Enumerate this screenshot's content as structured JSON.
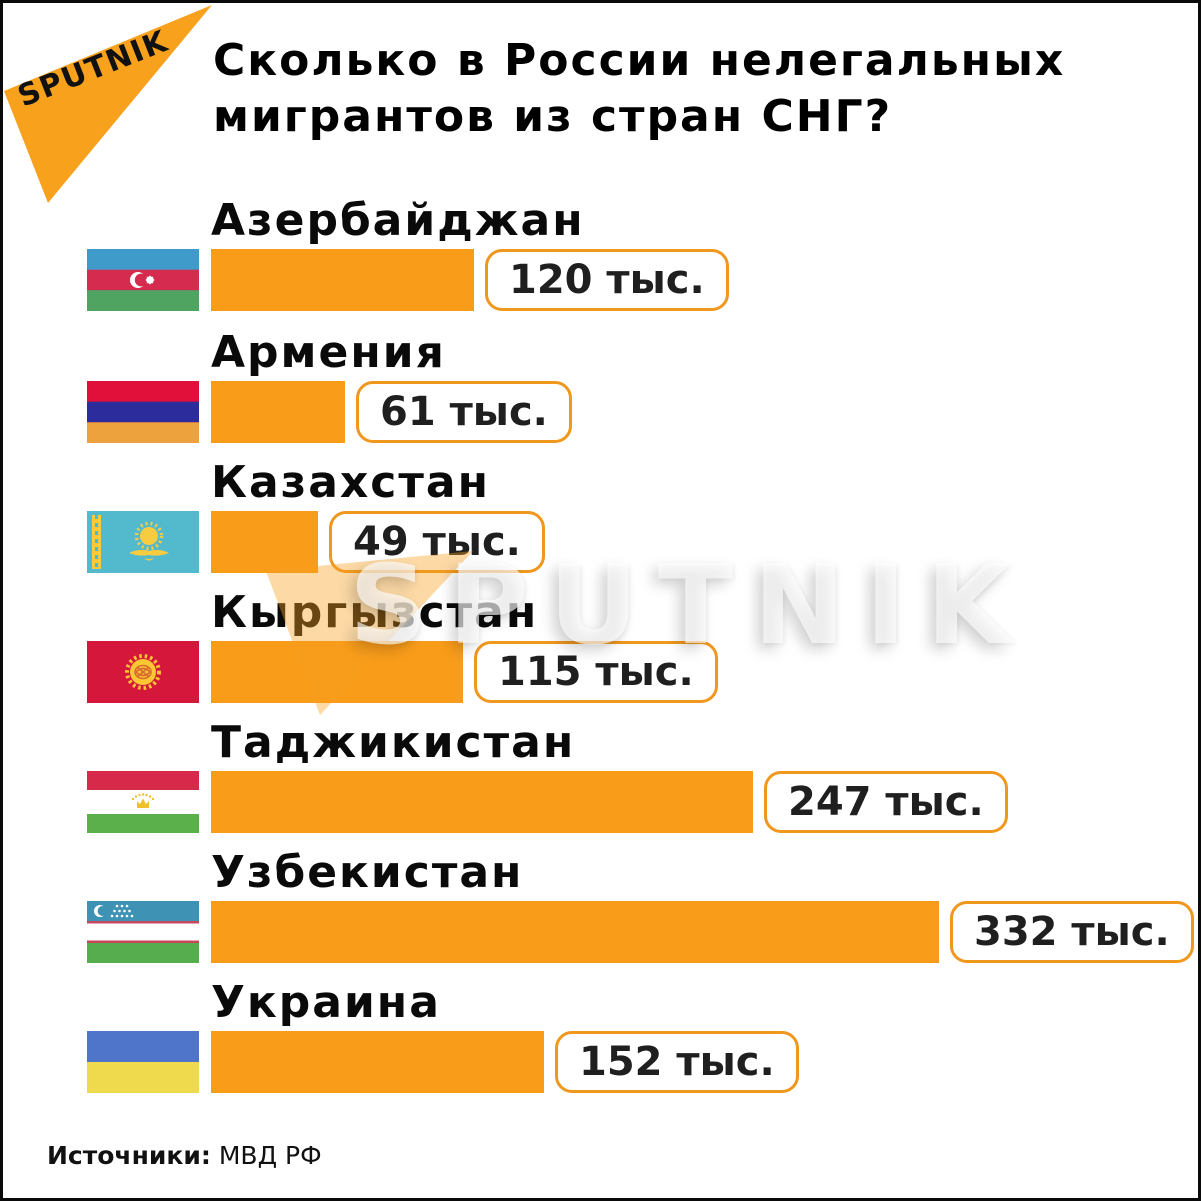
{
  "brand": {
    "logo_text": "SPUTNIK",
    "watermark_text": "SPUTNIK",
    "orange": "#F89C1A"
  },
  "title": {
    "line1": "Сколько в России нелегальных",
    "line2": "мигрантов из стран СНГ?"
  },
  "source": {
    "label": "Источники:",
    "value": "МВД РФ"
  },
  "chart_data": {
    "type": "bar",
    "orientation": "horizontal",
    "title": "Сколько в России нелегальных мигрантов из стран СНГ?",
    "unit": "тыс.",
    "categories": [
      "Азербайджан",
      "Армения",
      "Казахстан",
      "Кыргызстан",
      "Таджикистан",
      "Узбекистан",
      "Украина"
    ],
    "values": [
      120,
      61,
      49,
      115,
      247,
      332,
      152
    ],
    "value_labels": [
      "120 тыс.",
      "61 тыс.",
      "49 тыс.",
      "115 тыс.",
      "247 тыс.",
      "332 тыс.",
      "152 тыс."
    ],
    "xlim": [
      0,
      332
    ],
    "bar_color": "#F89C1A",
    "grid": false,
    "legend": "none",
    "source": "Источники: МВД РФ"
  },
  "rows": [
    {
      "name": "Азербайджан",
      "value_label": "120 тыс."
    },
    {
      "name": "Армения",
      "value_label": "61 тыс."
    },
    {
      "name": "Казахстан",
      "value_label": "49 тыс."
    },
    {
      "name": "Кыргызстан",
      "value_label": "115 тыс."
    },
    {
      "name": "Таджикистан",
      "value_label": "247 тыс."
    },
    {
      "name": "Узбекистан",
      "value_label": "332 тыс."
    },
    {
      "name": "Украина",
      "value_label": "152 тыс."
    }
  ]
}
